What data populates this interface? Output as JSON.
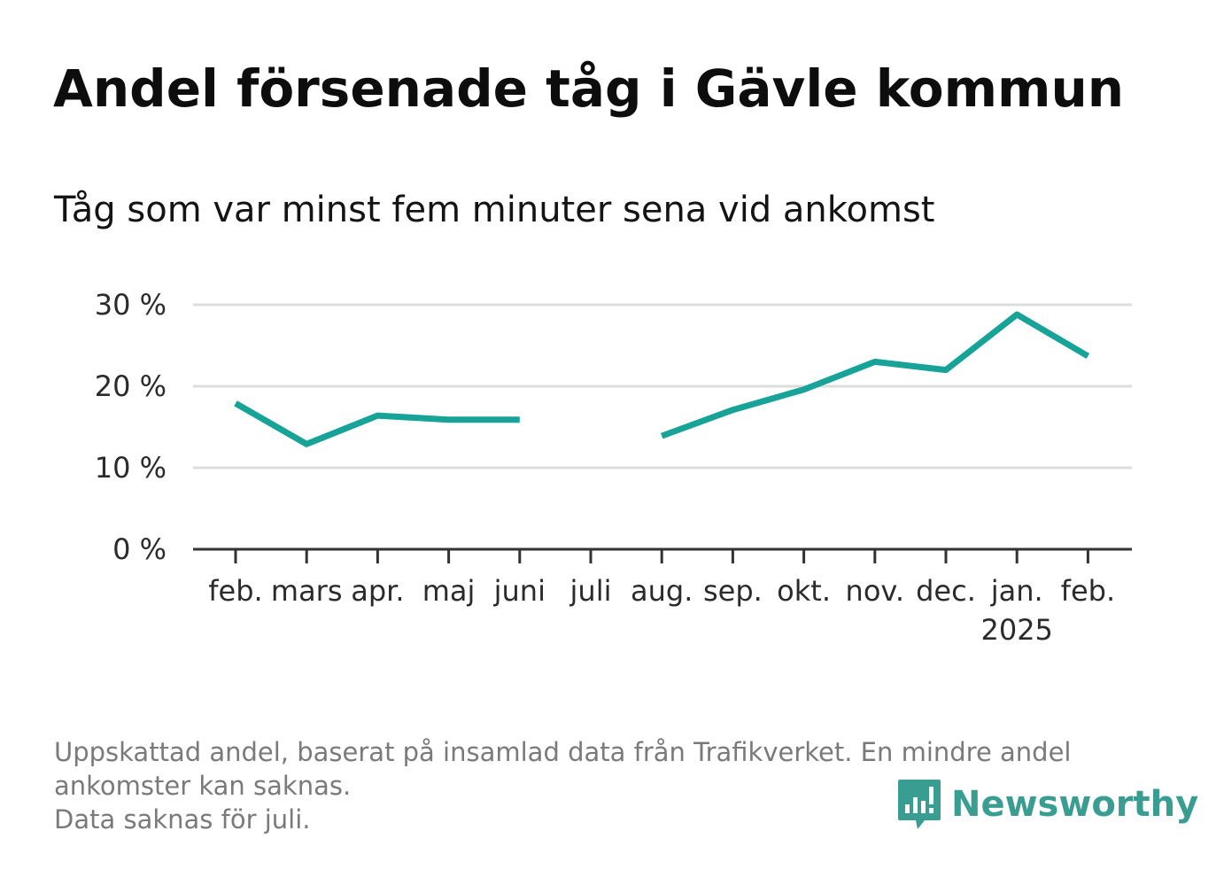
{
  "title": "Andel försenade tåg i Gävle kommun",
  "subtitle": "Tåg som var minst fem minuter sena vid ankomst",
  "colors": {
    "line": "#17a397",
    "grid": "#dddddd",
    "axis": "#333333",
    "logo": "#3a9d92"
  },
  "chart_data": {
    "type": "line",
    "title": "Andel försenade tåg i Gävle kommun",
    "subtitle": "Tåg som var minst fem minuter sena vid ankomst",
    "categories": [
      "feb.",
      "mars",
      "apr.",
      "maj",
      "juni",
      "juli",
      "aug.",
      "sep.",
      "okt.",
      "nov.",
      "dec.",
      "jan.",
      "feb."
    ],
    "year_labels": [
      "",
      "",
      "",
      "",
      "",
      "",
      "",
      "",
      "",
      "",
      "",
      "2025",
      ""
    ],
    "values": [
      17.9,
      12.9,
      16.4,
      15.9,
      15.9,
      null,
      13.9,
      17.1,
      19.6,
      23.0,
      22.0,
      28.8,
      23.7
    ],
    "y_ticks": [
      0,
      10,
      20,
      30
    ],
    "y_tick_labels": [
      "0 %",
      "10 %",
      "20 %",
      "30 %"
    ],
    "ylim": [
      0,
      30
    ],
    "grid": true,
    "legend": "none"
  },
  "footnotes": [
    "Uppskattad andel, baserat på insamlad data från Trafikverket. En mindre andel",
    "ankomster kan saknas.",
    "Data saknas för juli."
  ],
  "logo": {
    "icon": "newsworthy-bar-chart-icon",
    "text": "Newsworthy"
  }
}
